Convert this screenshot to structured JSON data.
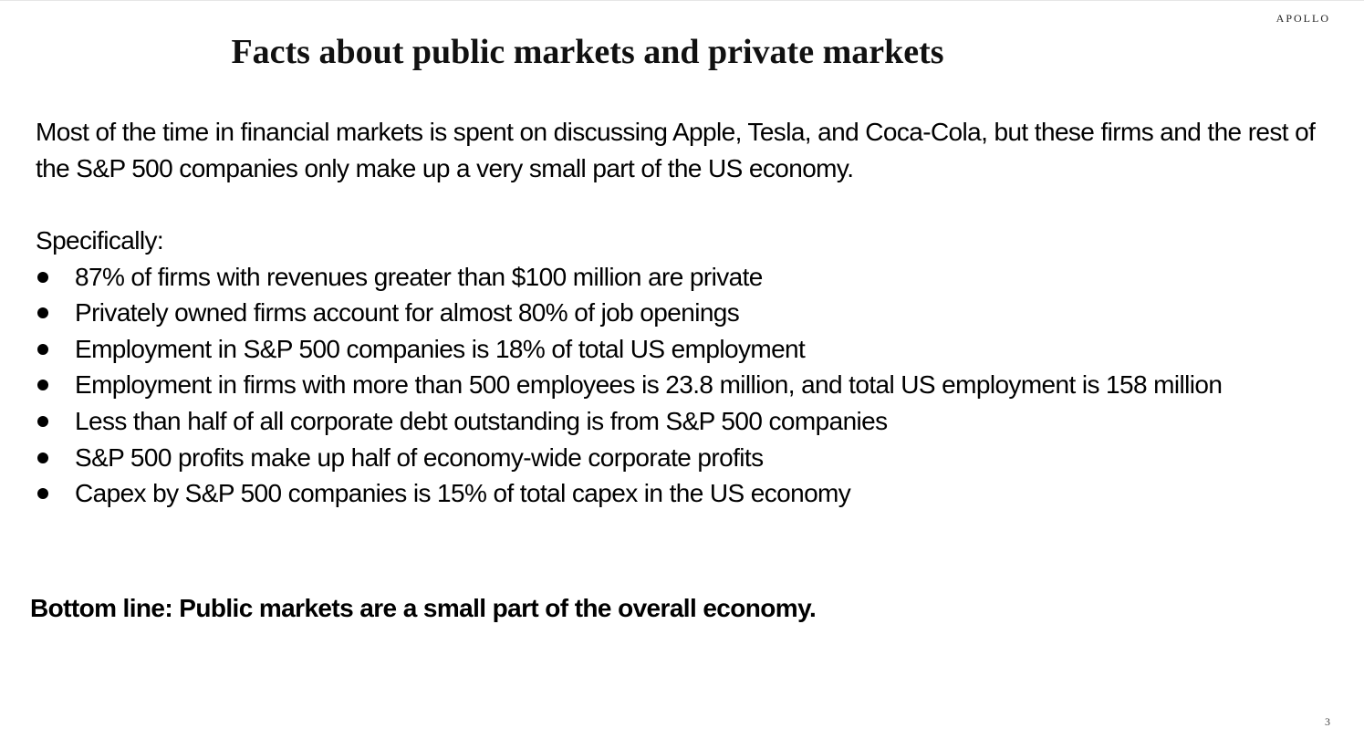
{
  "header": {
    "brand": "APOLLO",
    "title": "Facts about public markets and private markets"
  },
  "body": {
    "intro": "Most of the time in financial markets is spent on discussing Apple, Tesla, and Coca-Cola, but these firms and the rest of the S&P 500 companies only make up a very small part of the US economy.",
    "lead": "Specifically:",
    "bullets": [
      "87% of firms with revenues greater than $100 million are private",
      "Privately owned firms account for almost 80% of job openings",
      "Employment in S&P 500 companies is 18% of total US employment",
      "Employment in firms with more than 500 employees is 23.8 million, and total US employment is 158 million",
      "Less than half of all corporate debt outstanding is from S&P 500 companies",
      "S&P 500 profits make up half of economy-wide corporate profits",
      "Capex by S&P 500 companies is 15% of total capex in the US economy"
    ],
    "bottom_line": "Bottom line: Public markets are a small part of the overall economy."
  },
  "footer": {
    "page_number": "3"
  }
}
